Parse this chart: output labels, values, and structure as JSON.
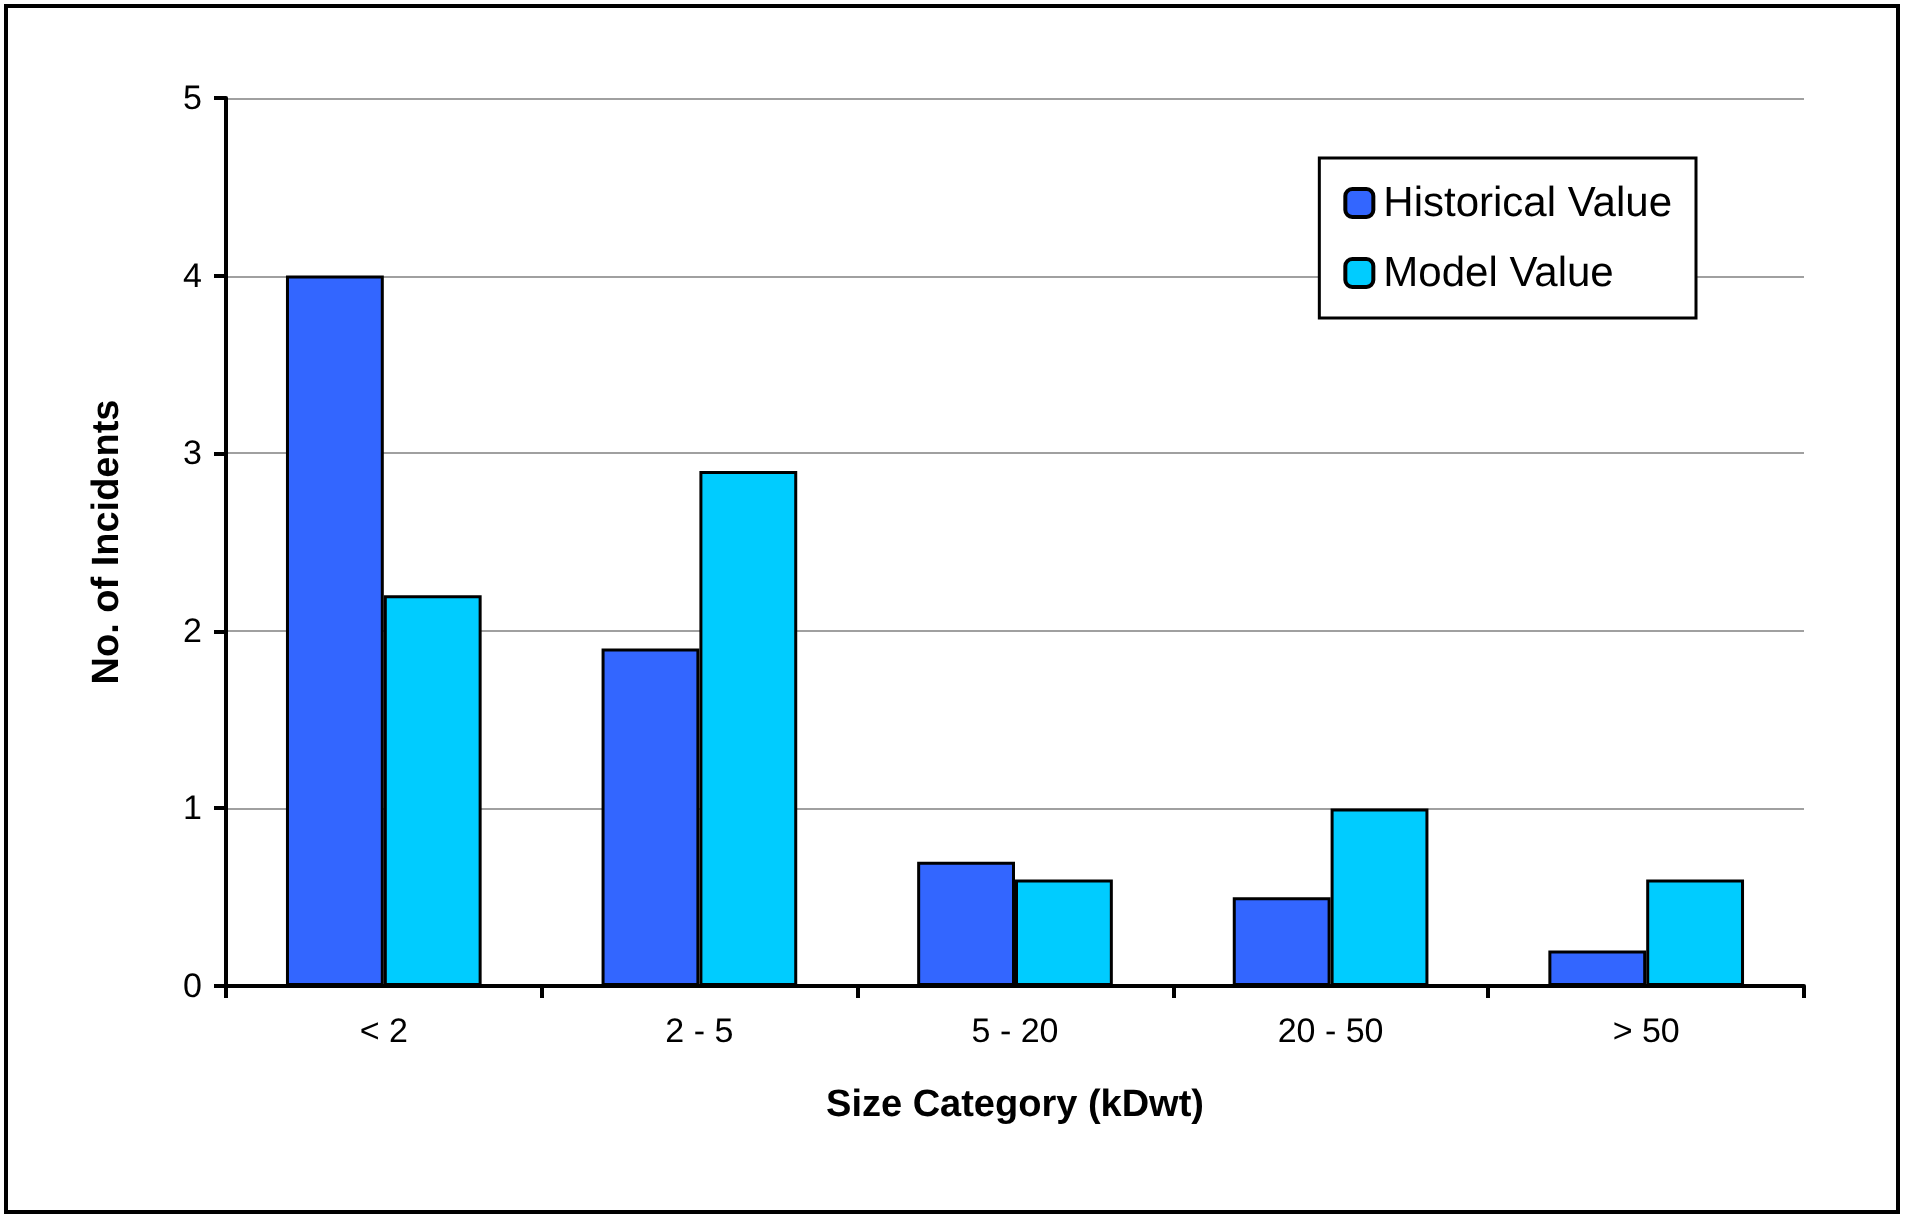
{
  "chart_data": {
    "type": "bar",
    "xlabel": "Size Category (kDwt)",
    "ylabel": "No. of Incidents",
    "categories": [
      "< 2",
      "2 - 5",
      "5 - 20",
      "20 - 50",
      "> 50"
    ],
    "series": [
      {
        "name": "Historical Value",
        "color": "#3366ff",
        "values": [
          4,
          1.9,
          0.7,
          0.5,
          0.2
        ]
      },
      {
        "name": "Model Value",
        "color": "#00ccff",
        "values": [
          2.2,
          2.9,
          0.6,
          1.0,
          0.6
        ]
      }
    ],
    "ylim": [
      0,
      5
    ],
    "yticks": [
      0,
      1,
      2,
      3,
      4,
      5
    ],
    "grid": "y",
    "legend": "top right"
  }
}
